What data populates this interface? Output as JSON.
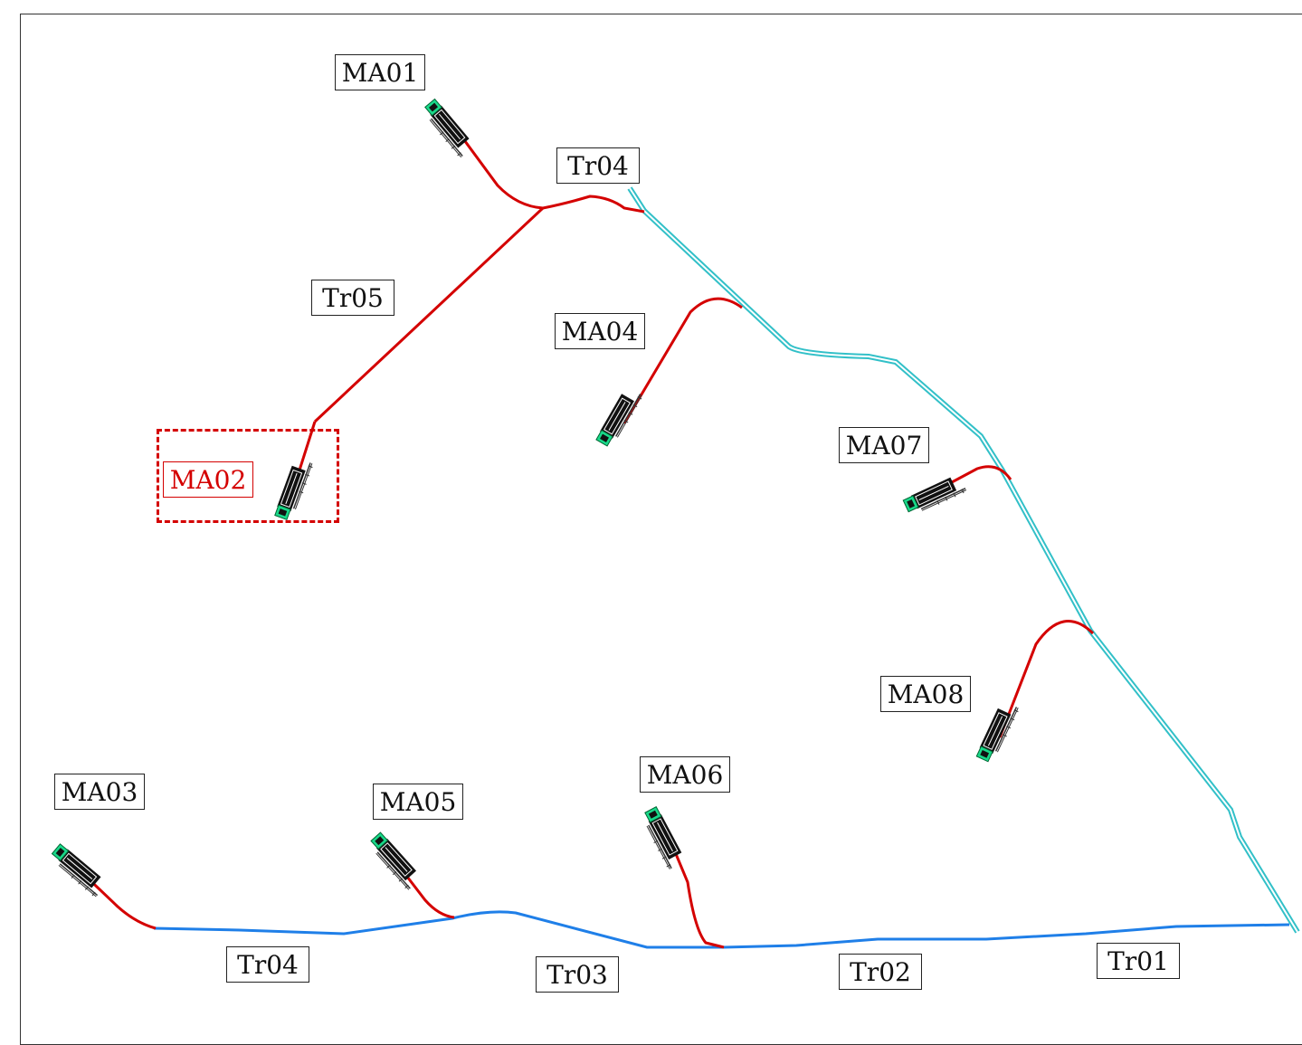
{
  "colors": {
    "highlight": "#d40000",
    "branch_line": "#d40000",
    "trunk_bottom": "#1f7fe8",
    "trunk_right": "#32c0c8",
    "machine_fill": "#19d98a",
    "machine_body": "#111111"
  },
  "labels": {
    "ma01": "MA01",
    "ma02": "MA02",
    "ma03": "MA03",
    "ma04": "MA04",
    "ma05": "MA05",
    "ma06": "MA06",
    "ma07": "MA07",
    "ma08": "MA08",
    "tr01": "Tr01",
    "tr02": "Tr02",
    "tr03": "Tr03",
    "tr04_top": "Tr04",
    "tr04_bottom": "Tr04",
    "tr05": "Tr05"
  },
  "selected": "MA02",
  "icon": "machine-icon"
}
